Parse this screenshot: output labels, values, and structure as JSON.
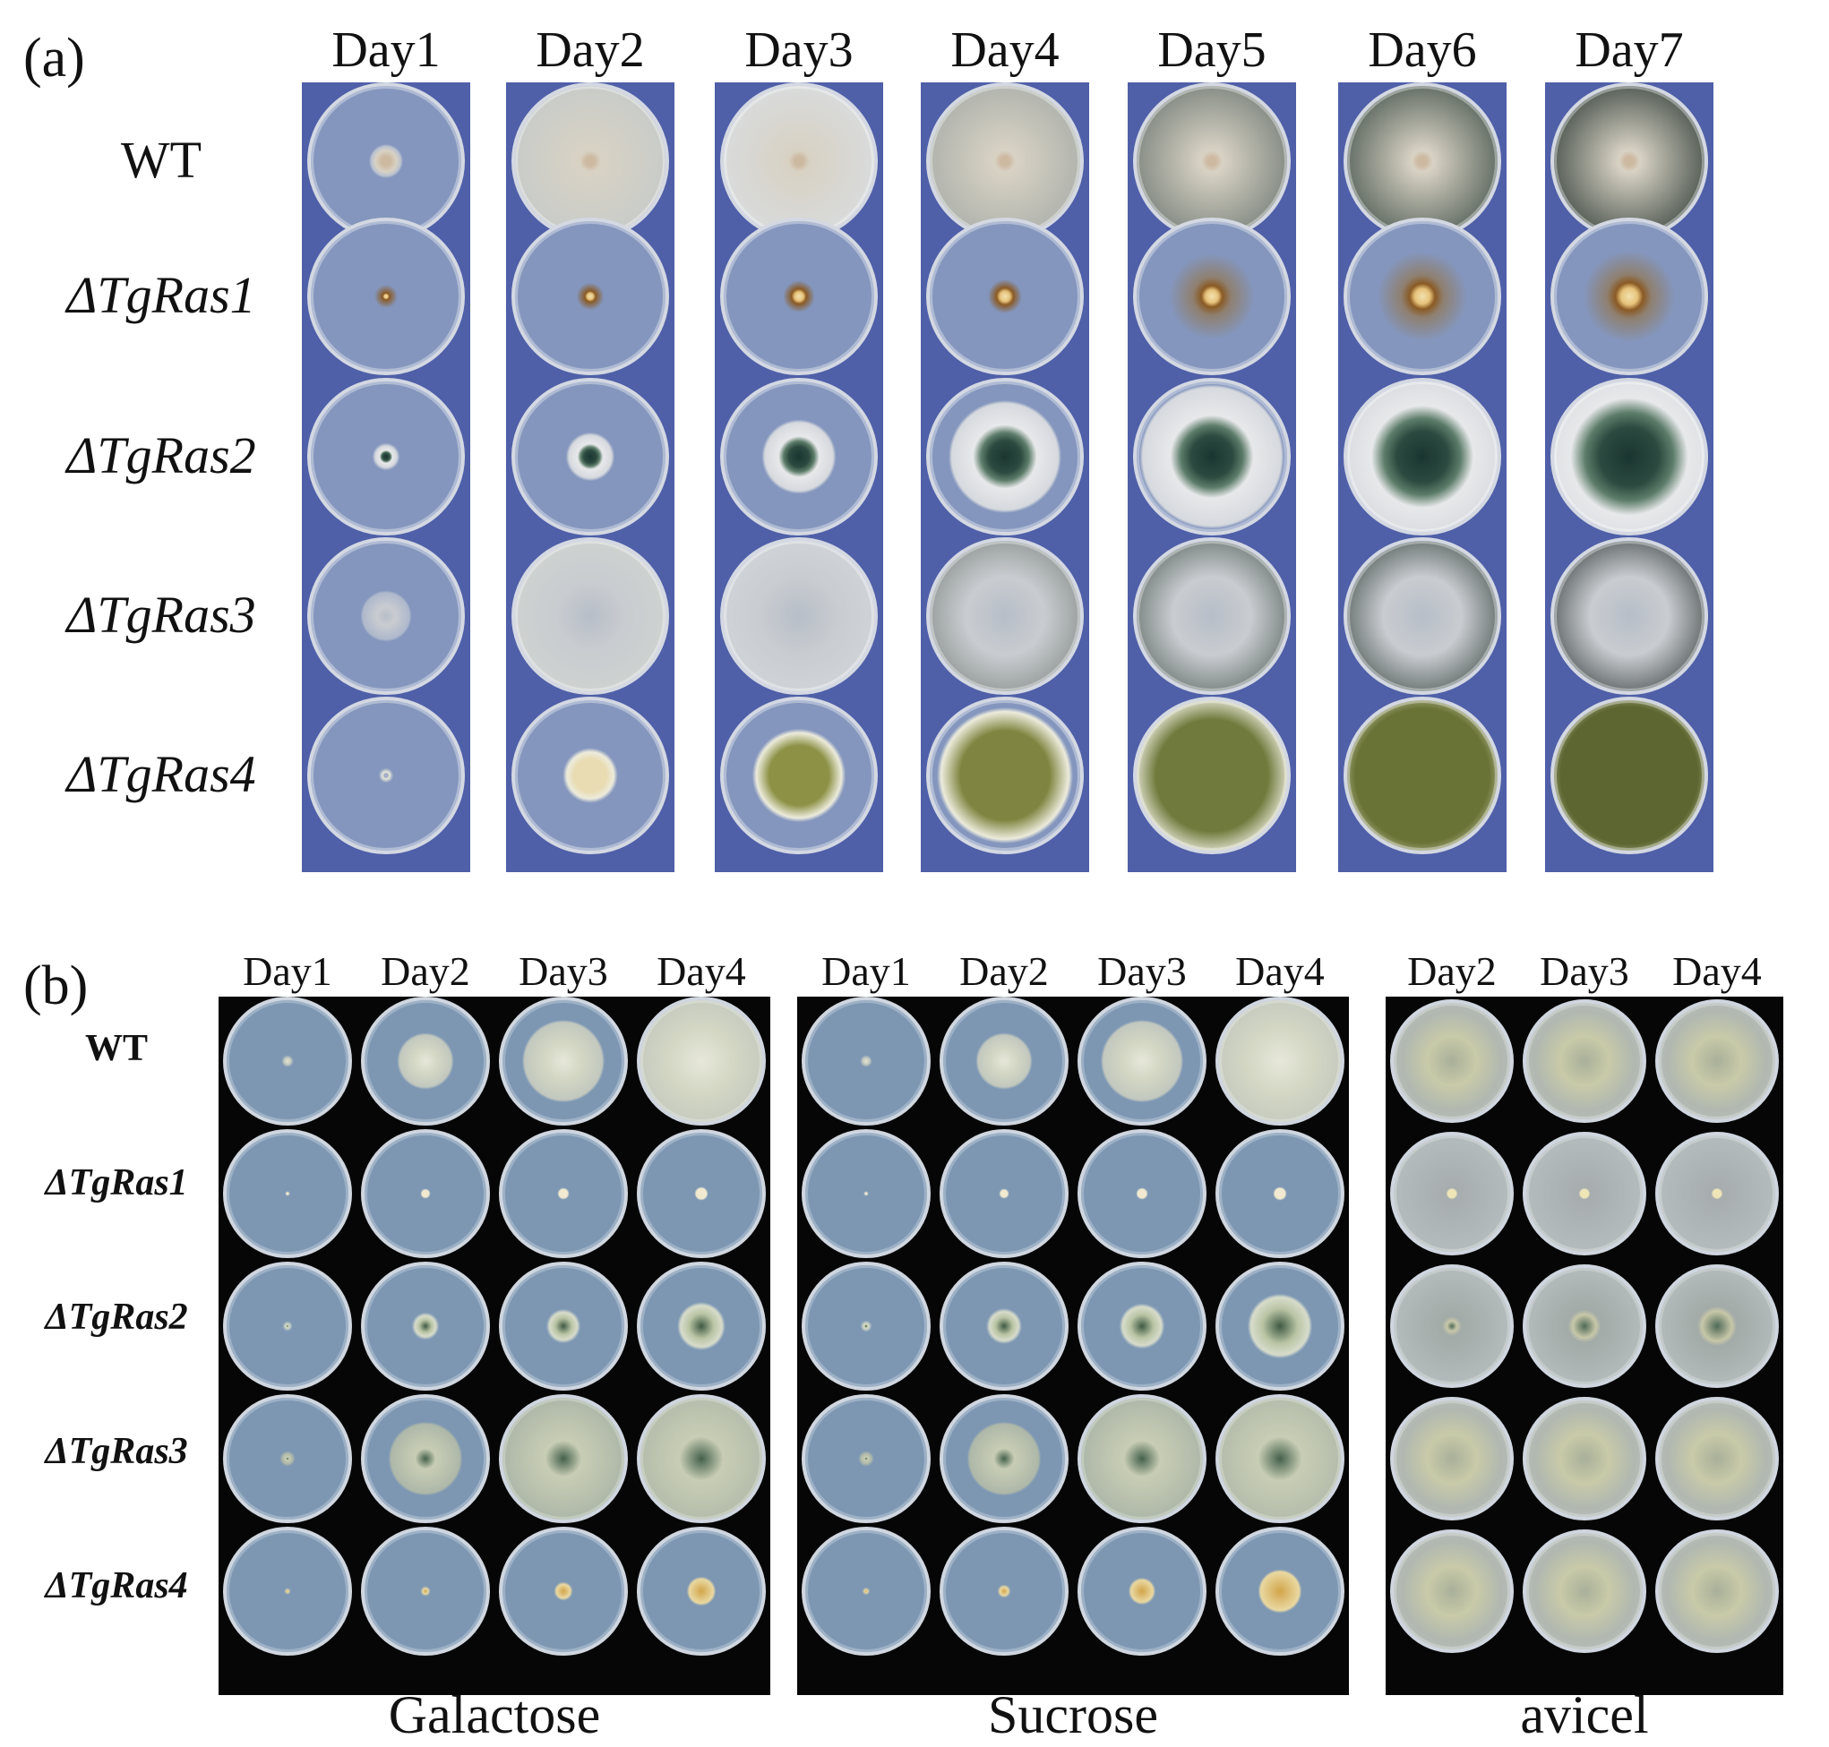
{
  "panel_a": {
    "label": "(a)",
    "days": [
      "Day1",
      "Day2",
      "Day3",
      "Day4",
      "Day5",
      "Day6",
      "Day7"
    ],
    "strains": [
      "WT",
      "ΔTgRas1",
      "ΔTgRas2",
      "ΔTgRas3",
      "ΔTgRas4"
    ]
  },
  "panel_b": {
    "label": "(b)",
    "strains": [
      "WT",
      "ΔTgRas1",
      "ΔTgRas2",
      "ΔTgRas3",
      "ΔTgRas4"
    ],
    "media": [
      {
        "name": "Galactose",
        "days": [
          "Day1",
          "Day2",
          "Day3",
          "Day4"
        ]
      },
      {
        "name": "Sucrose",
        "days": [
          "Day1",
          "Day2",
          "Day3",
          "Day4"
        ]
      },
      {
        "name": "avicel",
        "days": [
          "Day2",
          "Day3",
          "Day4"
        ]
      }
    ]
  },
  "colors": {
    "plate_background_a": "#4f5fa8",
    "plate_background_b": "#060606",
    "agar": "#7f90b6",
    "colony_white": "#e4e7ec",
    "colony_dark_green": "#2f3f3a",
    "colony_olive": "#8a8d42"
  }
}
